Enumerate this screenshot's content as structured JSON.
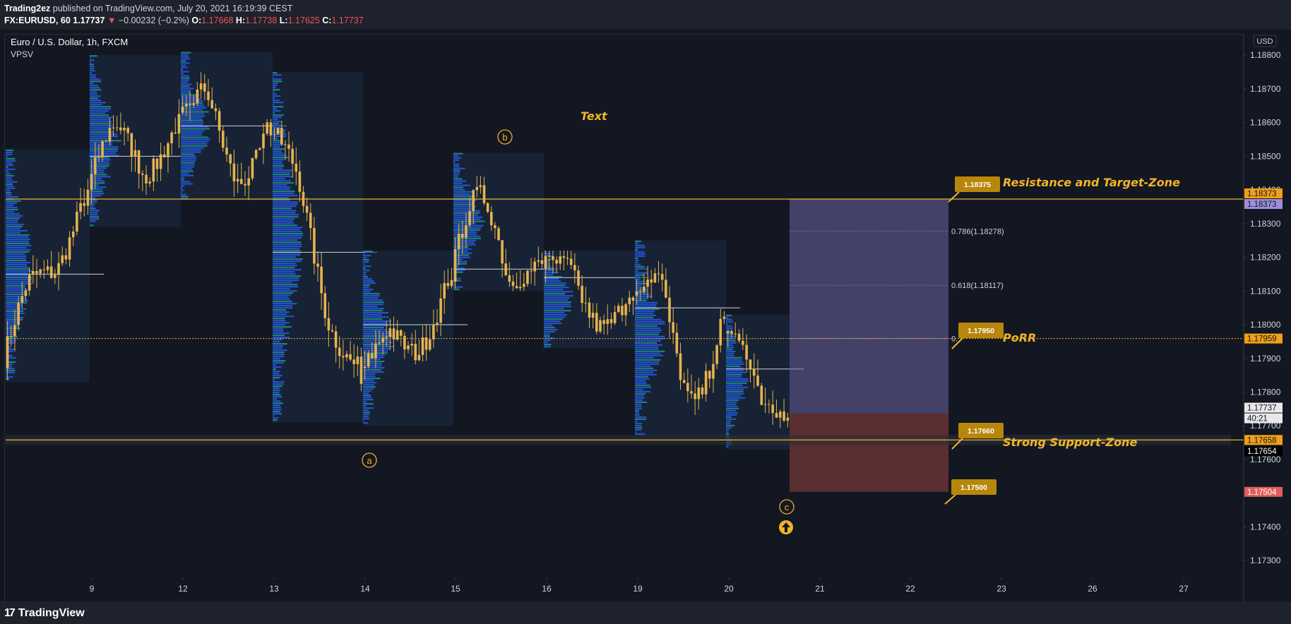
{
  "header": {
    "publisher": "Trading2ez",
    "published_text": "published on TradingView.com, July 20, 2021 16:19:39 CEST",
    "symbol": "FX:EURUSD, 60",
    "last": "1.17737",
    "change_arrow": "▼",
    "change": "−0.00232 (−0.2%)",
    "o_label": "O:",
    "o_value": "1.17668",
    "h_label": "H:",
    "h_value": "1.17738",
    "l_label": "L:",
    "l_value": "1.17625",
    "c_label": "C:",
    "c_value": "1.17737"
  },
  "chart_title": "Euro / U.S. Dollar, 1h, FXCM",
  "indicator": "VPSV",
  "currency": "USD",
  "footer": {
    "brand": "TradingView",
    "logo_icon": "tradingview-logo-icon"
  },
  "colors": {
    "background": "#131722",
    "candle": "#e6b34d",
    "line": "#f0b429",
    "volume_profile": "#2962ff",
    "profit_zone": "#6b64a3",
    "stop_zone": "#8c3d3d",
    "down": "#ef5350"
  },
  "chart_data": {
    "type": "candlestick",
    "title": "Euro / U.S. Dollar, 1h, FXCM",
    "ylim": [
      1.1725,
      1.1888
    ],
    "y_ticks": [
      "1.18800",
      "1.18700",
      "1.18600",
      "1.18500",
      "1.18400",
      "1.18300",
      "1.18200",
      "1.18100",
      "1.18000",
      "1.17900",
      "1.17800",
      "1.17700",
      "1.17600",
      "1.17500",
      "1.17400",
      "1.17300"
    ],
    "x_ticks": [
      "9",
      "12",
      "13",
      "14",
      "15",
      "16",
      "19",
      "20",
      "21",
      "22",
      "23",
      "26",
      "27"
    ],
    "sessions": [
      {
        "day": "8",
        "open": 1.179,
        "high": 1.1852,
        "low": 1.1783,
        "close": 1.184
      },
      {
        "day": "9",
        "open": 1.184,
        "high": 1.188,
        "low": 1.1829,
        "close": 1.186
      },
      {
        "day": "12",
        "open": 1.186,
        "high": 1.1881,
        "low": 1.1837,
        "close": 1.1858
      },
      {
        "day": "13",
        "open": 1.1858,
        "high": 1.1875,
        "low": 1.1771,
        "close": 1.1785
      },
      {
        "day": "14",
        "open": 1.1785,
        "high": 1.1822,
        "low": 1.177,
        "close": 1.1815
      },
      {
        "day": "15",
        "open": 1.1815,
        "high": 1.1851,
        "low": 1.181,
        "close": 1.1818
      },
      {
        "day": "16",
        "open": 1.1818,
        "high": 1.1822,
        "low": 1.1793,
        "close": 1.181
      },
      {
        "day": "19",
        "open": 1.181,
        "high": 1.1825,
        "low": 1.1767,
        "close": 1.18
      },
      {
        "day": "20",
        "open": 1.18,
        "high": 1.1803,
        "low": 1.1763,
        "close": 1.17737
      }
    ],
    "levels": [
      {
        "name": "Resistance and Target-Zone",
        "price": 1.18373,
        "label": "1.18373"
      },
      {
        "name": "PoRR",
        "price": 1.17959,
        "label": "1.17959"
      },
      {
        "name": "Strong Support-Zone",
        "price": 1.17658,
        "label": "1.17658"
      }
    ],
    "price_labels": [
      {
        "text": "1.18373",
        "kind": "level"
      },
      {
        "text": "1.18373",
        "kind": "target"
      },
      {
        "text": "1.17959",
        "kind": "level"
      },
      {
        "text": "1.17737",
        "kind": "last"
      },
      {
        "text": "40:21",
        "kind": "countdown"
      },
      {
        "text": "1.17658",
        "kind": "level"
      },
      {
        "text": "1.17654",
        "kind": "bid"
      },
      {
        "text": "1.17504",
        "kind": "stop"
      }
    ],
    "fib_levels": [
      {
        "label": "0.786(1.18278)",
        "price": 1.18278
      },
      {
        "label": "0.618(1.18117)",
        "price": 1.18117
      },
      {
        "label": "0.",
        "price": 1.17959
      }
    ],
    "callouts": [
      {
        "text": "1.18375",
        "price": 1.18375
      },
      {
        "text": "1.17950",
        "price": 1.1795
      },
      {
        "text": "1.17660",
        "price": 1.1766
      },
      {
        "text": "1.17500",
        "price": 1.175
      }
    ],
    "annotations": [
      {
        "text": "Text"
      },
      {
        "text": "Resistance and Target-Zone"
      },
      {
        "text": "PoRR"
      },
      {
        "text": "Strong Support-Zone"
      }
    ],
    "wave_points": [
      {
        "label": "a",
        "day": "14"
      },
      {
        "label": "b",
        "day": "15"
      },
      {
        "label": "c",
        "day": "20"
      }
    ],
    "position": {
      "entry": 1.17737,
      "target": 1.18373,
      "stop": 1.17504
    }
  }
}
